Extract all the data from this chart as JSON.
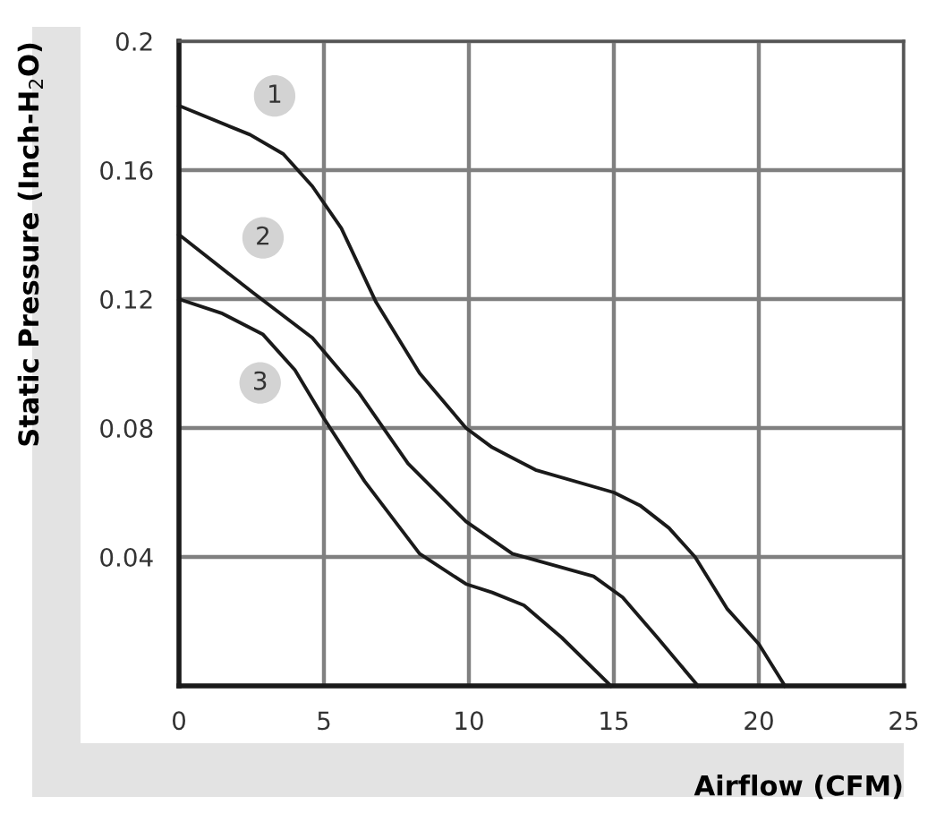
{
  "chart_data": {
    "type": "line",
    "xlabel": "Airflow (CFM)",
    "ylabel": "Static Pressure (Inch-H$_{2}$O)",
    "xlim": [
      0,
      25
    ],
    "ylim": [
      0,
      0.2
    ],
    "xticks": [
      0,
      5,
      10,
      15,
      20,
      25
    ],
    "yticks": [
      {
        "value": 0,
        "label": null
      },
      0.04,
      0.08,
      0.12,
      0.16,
      0.2
    ],
    "grid": true,
    "marker": "none",
    "line_style": "solid",
    "series": [
      {
        "color": "#1a1a1a",
        "x": [
          0,
          2.45,
          3.6,
          4.6,
          5.6,
          6.8,
          8.3,
          9.9,
          10.8,
          12.3,
          15,
          15.9,
          16.9,
          17.8,
          18.9,
          20,
          20.9
        ],
        "values": [
          0.18,
          0.171,
          0.165,
          0.155,
          0.142,
          0.119,
          0.097,
          0.08,
          0.074,
          0.067,
          0.06,
          0.056,
          0.049,
          0.04,
          0.024,
          0.013,
          0
        ]
      },
      {
        "color": "#1a1a1a",
        "x": [
          0,
          2.55,
          4.6,
          6.2,
          7.9,
          9.9,
          11.5,
          14.3,
          15.3,
          16.5,
          17.9
        ],
        "values": [
          0.14,
          0.122,
          0.108,
          0.091,
          0.069,
          0.051,
          0.041,
          0.034,
          0.0275,
          0.015,
          0
        ]
      },
      {
        "color": "#1a1a1a",
        "x": [
          0,
          1.5,
          2.9,
          4,
          5,
          6.4,
          8.3,
          9.9,
          10.8,
          11.9,
          13.2,
          14.9
        ],
        "values": [
          0.12,
          0.1155,
          0.109,
          0.098,
          0.083,
          0.0635,
          0.041,
          0.0316,
          0.029,
          0.025,
          0.015,
          0
        ]
      }
    ],
    "annotations": [
      {
        "text": "1",
        "x": 3.3,
        "y": 0.183
      },
      {
        "text": "2",
        "x": 2.9,
        "y": 0.139
      },
      {
        "text": "3",
        "x": 2.8,
        "y": 0.094
      }
    ]
  }
}
